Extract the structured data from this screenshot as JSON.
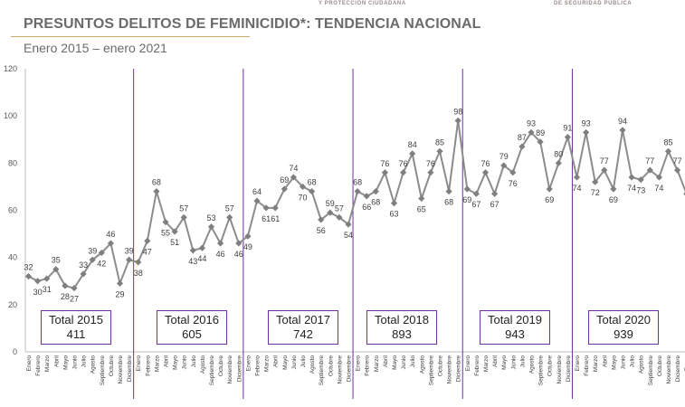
{
  "header": {
    "title": "PRESUNTOS DELITOS DE FEMINICIDIO*: TENDENCIA NACIONAL",
    "subtitle": "Enero 2015 – enero 2021",
    "logo_text_left": "Y PROTECCIÓN CIUDADANA",
    "logo_text_right": "DE SEGURIDAD PÚBLICA"
  },
  "colors": {
    "line": "#8c8c8c",
    "marker": "#7f7f7f",
    "year_divider": "#7030a0",
    "box_border": "#7030a0",
    "max_label": "#e00000",
    "min_label": "#00a000"
  },
  "totals": [
    {
      "label": "Total 2015",
      "value": "411"
    },
    {
      "label": "Total 2016",
      "value": "605"
    },
    {
      "label": "Total 2017",
      "value": "742"
    },
    {
      "label": "Total 2018",
      "value": "893"
    },
    {
      "label": "Total 2019",
      "value": "943"
    },
    {
      "label": "Total 2020",
      "value": "939"
    }
  ],
  "chart_data": {
    "type": "line",
    "title": "PRESUNTOS DELITOS DE FEMINICIDIO*: TENDENCIA NACIONAL",
    "subtitle": "Enero 2015 – enero 2021",
    "ylim": [
      0,
      120
    ],
    "yticks": [
      0,
      20,
      40,
      60,
      80,
      100,
      120
    ],
    "grid": false,
    "month_labels": [
      "Enero",
      "Febrero",
      "Marzo",
      "Abril",
      "Mayo",
      "Junio",
      "Julio",
      "Agosto",
      "Septiembre",
      "Octubre",
      "Noviembre",
      "Diciembre"
    ],
    "years": [
      "2015",
      "2016",
      "2017",
      "2018",
      "2019",
      "2020",
      "2021"
    ],
    "values": [
      32,
      30,
      31,
      35,
      28,
      27,
      33,
      39,
      42,
      46,
      29,
      39,
      38,
      47,
      68,
      55,
      51,
      57,
      43,
      44,
      53,
      46,
      57,
      46,
      49,
      64,
      61,
      61,
      69,
      74,
      70,
      68,
      56,
      59,
      57,
      54,
      68,
      66,
      68,
      76,
      63,
      76,
      84,
      65,
      76,
      85,
      68,
      98,
      69,
      67,
      76,
      67,
      79,
      76,
      87,
      93,
      89,
      69,
      80,
      91,
      74,
      93,
      72,
      77,
      69,
      94,
      74,
      73,
      77,
      74,
      85,
      77,
      67
    ],
    "max_point": {
      "month": "Diciembre",
      "year": "2018",
      "value": 98
    },
    "min_point": {
      "month": "Junio",
      "year": "2015",
      "value": 27
    },
    "data_labels": {
      "0": "32",
      "1": "30",
      "2": "31",
      "3": "35",
      "4": "28",
      "5": "27",
      "6": "33",
      "7": "39",
      "8": "42",
      "9": "46",
      "10": "29",
      "11": "39",
      "12": "38",
      "13": "47",
      "14": "68",
      "15": "55",
      "16": "51",
      "17": "57",
      "18": "43",
      "19": "44",
      "20": "53",
      "21": "46",
      "22": "57",
      "23": "46",
      "24": "49",
      "25": "64",
      "26": "61",
      "27": "61",
      "28": "69",
      "29": "74",
      "30": "70",
      "31": "68",
      "32": "56",
      "33": "59",
      "34": "57",
      "35": "54",
      "36": "68",
      "37": "66",
      "38": "68",
      "39": "76",
      "40": "63",
      "41": "76",
      "42": "84",
      "43": "65",
      "44": "76",
      "45": "85",
      "46": "68",
      "47": "98",
      "48": "69",
      "49": "67",
      "50": "76",
      "51": "67",
      "52": "79",
      "53": "76",
      "54": "87",
      "55": "93",
      "56": "89",
      "57": "69",
      "58": "80",
      "59": "91",
      "60": "74",
      "61": "93",
      "62": "72",
      "63": "77",
      "64": "69",
      "65": "94",
      "66": "74",
      "67": "73",
      "68": "77",
      "69": "74",
      "70": "85",
      "71": "77"
    }
  }
}
